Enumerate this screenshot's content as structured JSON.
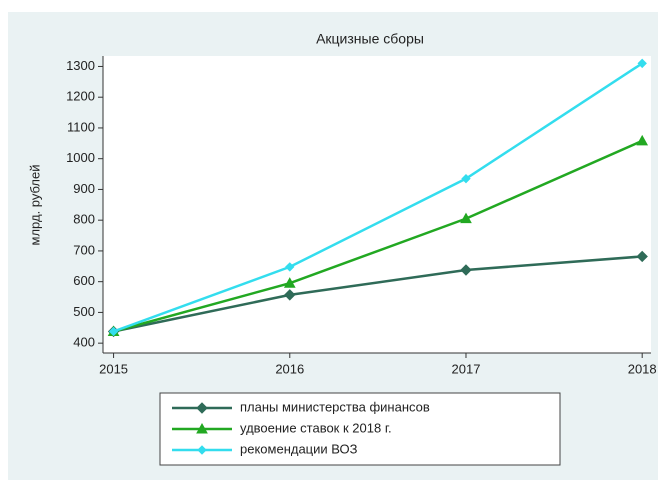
{
  "chart_data": {
    "type": "line",
    "title": "Акцизные сборы",
    "y_label": "млрд. рублей",
    "x": [
      2015,
      2016,
      2017,
      2018
    ],
    "series": [
      {
        "name": "планы министерства финансов",
        "color": "#2f6b58",
        "marker": "diamond",
        "values": [
          438,
          557,
          638,
          682
        ]
      },
      {
        "name": "удвоение ставок к 2018 г.",
        "color": "#22a822",
        "marker": "triangle",
        "values": [
          438,
          595,
          805,
          1058
        ]
      },
      {
        "name": "рекомендации ВОЗ",
        "color": "#33ddee",
        "marker": "plus",
        "values": [
          438,
          648,
          935,
          1310
        ]
      }
    ],
    "xlim": [
      2014.94,
      2018.05
    ],
    "xticks": [
      2015,
      2016,
      2017,
      2018
    ],
    "ylim": [
      368,
      1334
    ],
    "yticks": [
      400,
      500,
      600,
      700,
      800,
      900,
      1000,
      1100,
      1200,
      1300
    ],
    "grid": false,
    "legend": "bottom"
  }
}
